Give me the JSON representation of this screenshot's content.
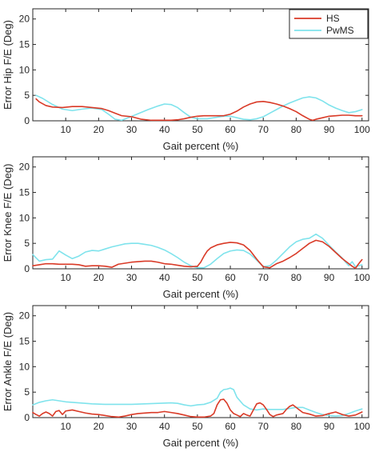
{
  "chart_data": [
    {
      "type": "line",
      "xlabel": "Gait percent (%)",
      "ylabel": "Error Hip F/E (Deg)",
      "xlim": [
        0,
        102
      ],
      "ylim": [
        0,
        22
      ],
      "xticks": [
        10,
        20,
        30,
        40,
        50,
        60,
        70,
        80,
        90,
        100
      ],
      "yticks": [
        0,
        5,
        10,
        15,
        20
      ],
      "legend": "top-right",
      "series": [
        {
          "name": "HS",
          "color": "#d93a27",
          "x": [
            1,
            2,
            4,
            6,
            9,
            12,
            15,
            18,
            21,
            23,
            25,
            27,
            30,
            33,
            36,
            38,
            40,
            42,
            44,
            46,
            48,
            50,
            52,
            55,
            58,
            60,
            62,
            64,
            66,
            68,
            70,
            72,
            74,
            76,
            78,
            80,
            82,
            84,
            85,
            86,
            88,
            90,
            92,
            94,
            96,
            98,
            100
          ],
          "y": [
            4.3,
            3.7,
            3.0,
            2.7,
            2.6,
            2.8,
            2.8,
            2.6,
            2.4,
            2.0,
            1.5,
            1.0,
            0.8,
            0.3,
            0.1,
            0.1,
            0.1,
            0.1,
            0.2,
            0.4,
            0.7,
            0.9,
            1.0,
            1.0,
            1.0,
            1.3,
            1.9,
            2.7,
            3.3,
            3.7,
            3.8,
            3.6,
            3.3,
            2.9,
            2.4,
            1.8,
            1.0,
            0.3,
            0.1,
            0.3,
            0.6,
            0.9,
            1.0,
            1.1,
            1.1,
            1.0,
            1.0
          ]
        },
        {
          "name": "PwMS",
          "color": "#7fe3ec",
          "x": [
            1,
            3,
            6,
            9,
            12,
            15,
            18,
            21,
            23,
            25,
            27,
            29,
            32,
            35,
            38,
            40,
            42,
            44,
            46,
            48,
            50,
            53,
            56,
            58,
            60,
            62,
            64,
            66,
            68,
            70,
            72,
            74,
            76,
            78,
            80,
            82,
            84,
            86,
            88,
            90,
            92,
            94,
            96,
            98,
            100
          ],
          "y": [
            5.0,
            4.4,
            3.2,
            2.3,
            2.0,
            2.3,
            2.5,
            2.2,
            1.3,
            0.3,
            0.1,
            0.6,
            1.4,
            2.2,
            2.9,
            3.3,
            3.2,
            2.6,
            1.6,
            0.7,
            0.4,
            0.4,
            0.7,
            0.9,
            0.9,
            0.6,
            0.3,
            0.2,
            0.4,
            0.8,
            1.5,
            2.2,
            2.9,
            3.5,
            4.0,
            4.5,
            4.7,
            4.5,
            3.9,
            3.1,
            2.5,
            2.0,
            1.6,
            1.8,
            2.2
          ]
        }
      ]
    },
    {
      "type": "line",
      "xlabel": "Gait percent (%)",
      "ylabel": "Error Knee F/E (Deg)",
      "xlim": [
        0,
        102
      ],
      "ylim": [
        0,
        22
      ],
      "xticks": [
        10,
        20,
        30,
        40,
        50,
        60,
        70,
        80,
        90,
        100
      ],
      "yticks": [
        0,
        5,
        10,
        15,
        20
      ],
      "series": [
        {
          "name": "HS",
          "color": "#d93a27",
          "x": [
            0,
            2,
            4,
            6,
            8,
            10,
            12,
            14,
            16,
            18,
            20,
            22,
            24,
            26,
            28,
            30,
            32,
            34,
            36,
            38,
            40,
            42,
            44,
            46,
            48,
            50,
            51,
            52,
            53,
            54,
            56,
            58,
            60,
            62,
            64,
            66,
            68,
            70,
            72,
            74,
            76,
            78,
            80,
            82,
            84,
            86,
            88,
            90,
            92,
            94,
            96,
            97,
            98,
            99,
            100
          ],
          "y": [
            0.6,
            0.8,
            1.0,
            1.0,
            0.9,
            0.9,
            0.9,
            0.8,
            0.5,
            0.6,
            0.6,
            0.5,
            0.3,
            0.9,
            1.1,
            1.3,
            1.4,
            1.5,
            1.5,
            1.3,
            1.0,
            0.9,
            0.7,
            0.5,
            0.4,
            0.5,
            1.3,
            2.5,
            3.5,
            4.1,
            4.7,
            5.0,
            5.2,
            5.1,
            4.7,
            3.6,
            1.9,
            0.4,
            0.2,
            1.0,
            1.5,
            2.2,
            3.0,
            4.0,
            5.0,
            5.6,
            5.3,
            4.4,
            3.2,
            2.0,
            1.0,
            0.5,
            0.1,
            1.0,
            1.8
          ]
        },
        {
          "name": "PwMS",
          "color": "#7fe3ec",
          "x": [
            0,
            2,
            4,
            6,
            8,
            10,
            12,
            14,
            16,
            18,
            20,
            22,
            24,
            26,
            28,
            30,
            32,
            34,
            36,
            38,
            40,
            42,
            44,
            46,
            48,
            50,
            52,
            54,
            56,
            58,
            60,
            62,
            64,
            66,
            68,
            70,
            72,
            74,
            76,
            78,
            80,
            82,
            84,
            86,
            88,
            90,
            92,
            94,
            95,
            96,
            97,
            98,
            99,
            100
          ],
          "y": [
            2.8,
            1.5,
            1.8,
            1.9,
            3.5,
            2.7,
            2.0,
            2.5,
            3.3,
            3.6,
            3.5,
            3.9,
            4.3,
            4.6,
            4.9,
            5.0,
            5.0,
            4.8,
            4.6,
            4.2,
            3.7,
            3.0,
            2.2,
            1.3,
            0.6,
            0.2,
            0.2,
            0.9,
            2.0,
            3.0,
            3.5,
            3.7,
            3.6,
            2.9,
            1.7,
            0.4,
            0.6,
            1.7,
            3.0,
            4.3,
            5.3,
            5.8,
            6.0,
            6.8,
            6.0,
            4.6,
            3.3,
            2.1,
            1.3,
            0.6,
            1.4,
            0.4,
            0.6,
            0.8
          ]
        }
      ]
    },
    {
      "type": "line",
      "xlabel": "Gait percent (%)",
      "ylabel": "Error Ankle F/E (Deg)",
      "xlim": [
        0,
        102
      ],
      "ylim": [
        0,
        22
      ],
      "xticks": [
        10,
        20,
        30,
        40,
        50,
        60,
        70,
        80,
        90,
        100
      ],
      "yticks": [
        0,
        5,
        10,
        15,
        20
      ],
      "series": [
        {
          "name": "HS",
          "color": "#d93a27",
          "x": [
            0,
            1,
            2,
            3,
            4,
            5,
            6,
            7,
            8,
            9,
            10,
            12,
            14,
            16,
            18,
            20,
            22,
            24,
            26,
            28,
            30,
            32,
            34,
            36,
            38,
            40,
            42,
            44,
            46,
            48,
            50,
            52,
            54,
            55,
            56,
            57,
            58,
            59,
            60,
            61,
            62,
            63,
            64,
            65,
            66,
            67,
            68,
            69,
            70,
            71,
            72,
            73,
            74,
            76,
            77,
            78,
            79,
            80,
            81,
            82,
            84,
            86,
            88,
            90,
            92,
            94,
            96,
            98,
            100
          ],
          "y": [
            1.0,
            0.6,
            0.3,
            0.8,
            1.1,
            0.8,
            0.3,
            1.2,
            1.4,
            0.6,
            1.3,
            1.5,
            1.2,
            0.9,
            0.7,
            0.6,
            0.4,
            0.2,
            0.1,
            0.3,
            0.6,
            0.8,
            0.9,
            1.0,
            1.0,
            1.2,
            1.0,
            0.8,
            0.5,
            0.2,
            0.1,
            0.1,
            0.3,
            0.8,
            2.5,
            3.5,
            3.6,
            2.8,
            1.5,
            0.8,
            0.5,
            0.2,
            0.8,
            0.5,
            0.3,
            1.5,
            2.7,
            2.9,
            2.5,
            1.6,
            0.6,
            0.2,
            0.5,
            0.8,
            1.6,
            2.2,
            2.5,
            2.0,
            1.5,
            1.0,
            0.7,
            0.3,
            0.4,
            0.8,
            1.1,
            0.6,
            0.3,
            0.5,
            1.1
          ]
        },
        {
          "name": "PwMS",
          "color": "#7fe3ec",
          "x": [
            0,
            2,
            4,
            6,
            8,
            10,
            14,
            18,
            22,
            26,
            30,
            34,
            38,
            42,
            44,
            46,
            48,
            50,
            52,
            54,
            56,
            57,
            58,
            59,
            60,
            61,
            62,
            64,
            66,
            68,
            70,
            72,
            74,
            76,
            78,
            80,
            82,
            84,
            86,
            88,
            90,
            92,
            94,
            96,
            98,
            100
          ],
          "y": [
            2.5,
            3.0,
            3.3,
            3.5,
            3.3,
            3.1,
            2.9,
            2.7,
            2.6,
            2.6,
            2.6,
            2.7,
            2.8,
            2.9,
            2.8,
            2.5,
            2.3,
            2.5,
            2.6,
            3.0,
            3.8,
            5.0,
            5.5,
            5.6,
            5.8,
            5.5,
            4.0,
            2.5,
            1.7,
            1.5,
            1.7,
            1.6,
            1.6,
            1.6,
            1.8,
            2.0,
            2.0,
            1.5,
            1.0,
            0.6,
            0.4,
            0.3,
            0.4,
            0.8,
            1.3,
            1.7
          ]
        }
      ]
    }
  ]
}
